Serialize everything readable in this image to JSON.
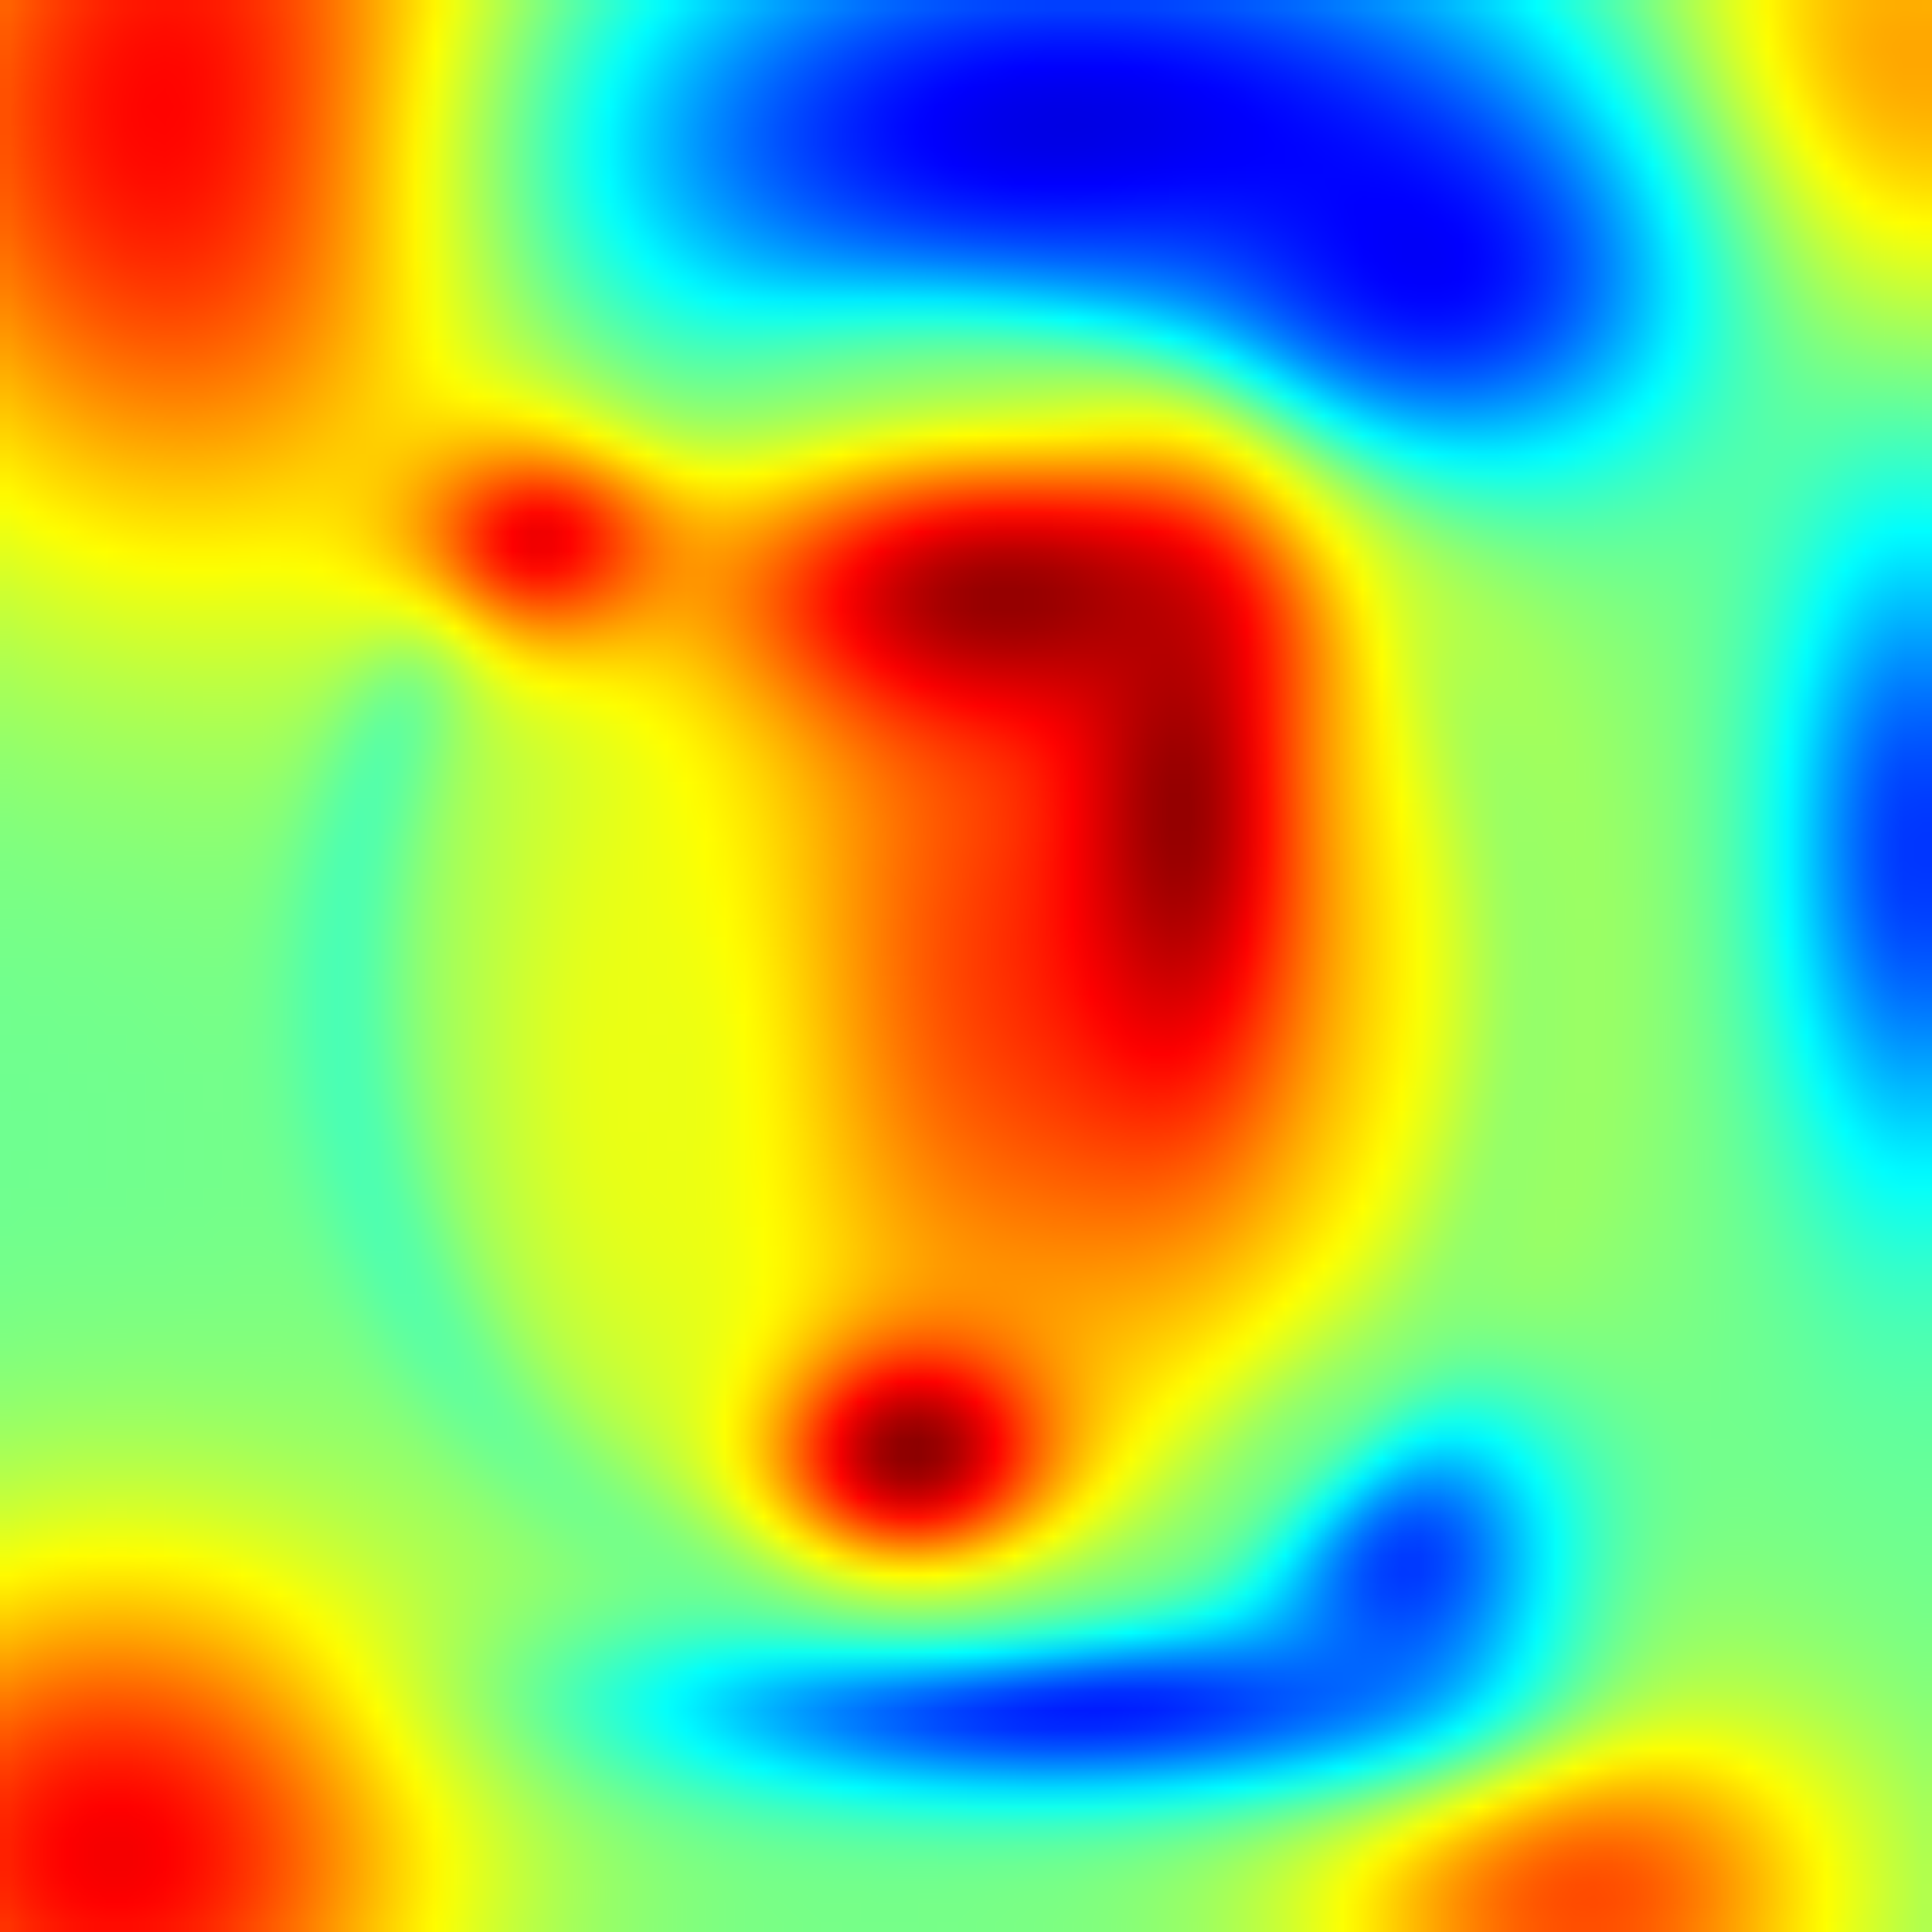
{
  "image": {
    "kind": "activation-heatmap",
    "colormap": "jet",
    "colormap_stops": [
      {
        "t": 0.0,
        "color": "#00008f"
      },
      {
        "t": 0.11,
        "color": "#0000ff"
      },
      {
        "t": 0.36,
        "color": "#00ffff"
      },
      {
        "t": 0.62,
        "color": "#ffff00"
      },
      {
        "t": 0.87,
        "color": "#ff0000"
      },
      {
        "t": 1.0,
        "color": "#800000"
      }
    ],
    "background_level": 0.47,
    "regions": [
      {
        "name": "hot-core-upper-right",
        "level": 0.98
      },
      {
        "name": "hot-core-lower",
        "level": 1.0
      },
      {
        "name": "hot-core-upper-left",
        "level": 0.9
      },
      {
        "name": "warm-ring-body",
        "level": 0.82
      },
      {
        "name": "inner-yellow-patch",
        "level": 0.6
      },
      {
        "name": "cyan-outline-ring",
        "level": 0.38
      },
      {
        "name": "cold-band-bottom",
        "level": 0.02
      },
      {
        "name": "cold-band-top",
        "level": 0.02
      },
      {
        "name": "cold-patch-right-edge",
        "level": 0.12
      },
      {
        "name": "warm-corner-top-left",
        "level": 0.9
      },
      {
        "name": "warm-corner-bottom-left",
        "level": 0.88
      },
      {
        "name": "warm-corner-top-right",
        "level": 0.75
      },
      {
        "name": "warm-corner-bottom-right",
        "level": 0.8
      }
    ]
  }
}
